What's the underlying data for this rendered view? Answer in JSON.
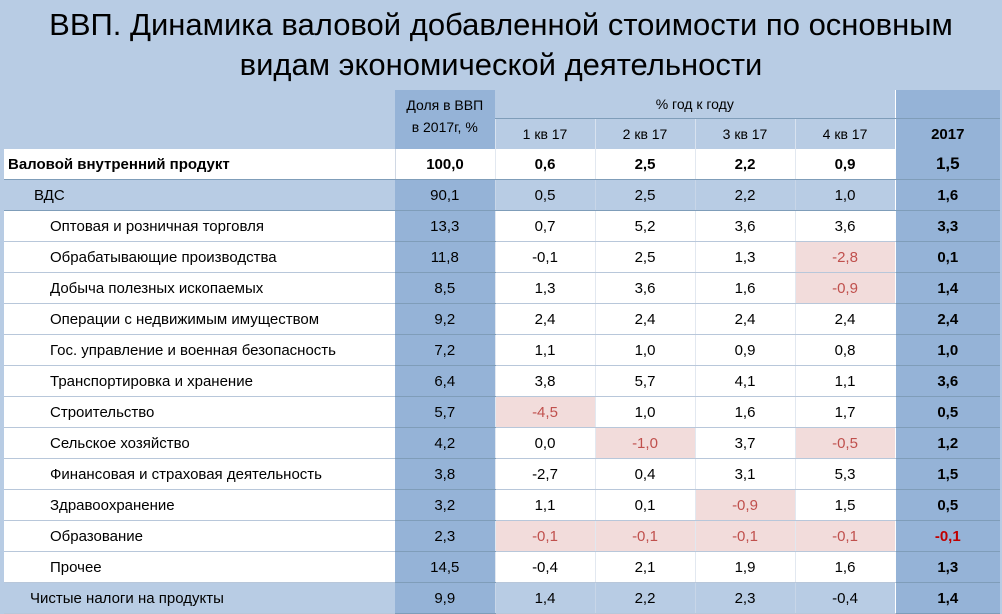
{
  "title": "ВВП. Динамика валовой добавленной стоимости по основным видам экономической деятельности",
  "header": {
    "share_label_line1": "Доля в ВВП",
    "share_label_line2": "в 2017г, %",
    "pct_label": "% год к году",
    "quarters": [
      "1 кв 17",
      "2 кв 17",
      "3 кв 17",
      "4 кв 17"
    ],
    "year": "2017"
  },
  "chart_data": {
    "type": "table",
    "title": "ВВП. Динамика валовой добавленной стоимости по основным видам экономической деятельности",
    "columns": [
      "Доля в ВВП в 2017г, %",
      "1 кв 17",
      "2 кв 17",
      "3 кв 17",
      "4 кв 17",
      "2017"
    ],
    "rows": [
      {
        "name": "Валовой внутренний продукт",
        "share": "100,0",
        "q": [
          "0,6",
          "2,5",
          "2,2",
          "0,9"
        ],
        "year": "1,5"
      },
      {
        "name": "ВДС",
        "share": "90,1",
        "q": [
          "0,5",
          "2,5",
          "2,2",
          "1,0"
        ],
        "year": "1,6"
      },
      {
        "name": "Оптовая и розничная торговля",
        "share": "13,3",
        "q": [
          "0,7",
          "5,2",
          "3,6",
          "3,6"
        ],
        "year": "3,3"
      },
      {
        "name": "Обрабатывающие производства",
        "share": "11,8",
        "q": [
          "-0,1",
          "2,5",
          "1,3",
          "-2,8"
        ],
        "year": "0,1"
      },
      {
        "name": "Добыча полезных ископаемых",
        "share": "8,5",
        "q": [
          "1,3",
          "3,6",
          "1,6",
          "-0,9"
        ],
        "year": "1,4"
      },
      {
        "name": "Операции с недвижимым имуществом",
        "share": "9,2",
        "q": [
          "2,4",
          "2,4",
          "2,4",
          "2,4"
        ],
        "year": "2,4"
      },
      {
        "name": "Гос. управление и военная безопасность",
        "share": "7,2",
        "q": [
          "1,1",
          "1,0",
          "0,9",
          "0,8"
        ],
        "year": "1,0"
      },
      {
        "name": "Транспортировка и хранение",
        "share": "6,4",
        "q": [
          "3,8",
          "5,7",
          "4,1",
          "1,1"
        ],
        "year": "3,6"
      },
      {
        "name": "Строительство",
        "share": "5,7",
        "q": [
          "-4,5",
          "1,0",
          "1,6",
          "1,7"
        ],
        "year": "0,5"
      },
      {
        "name": "Сельское хозяйство",
        "share": "4,2",
        "q": [
          "0,0",
          "-1,0",
          "3,7",
          "-0,5"
        ],
        "year": "1,2"
      },
      {
        "name": "Финансовая и страховая деятельность",
        "share": "3,8",
        "q": [
          "-2,7",
          "0,4",
          "3,1",
          "5,3"
        ],
        "year": "1,5"
      },
      {
        "name": "Здравоохранение",
        "share": "3,2",
        "q": [
          "1,1",
          "0,1",
          "-0,9",
          "1,5"
        ],
        "year": "0,5"
      },
      {
        "name": "Образование",
        "share": "2,3",
        "q": [
          "-0,1",
          "-0,1",
          "-0,1",
          "-0,1"
        ],
        "year": "-0,1"
      },
      {
        "name": "Прочее",
        "share": "14,5",
        "q": [
          "-0,4",
          "2,1",
          "1,9",
          "1,6"
        ],
        "year": "1,3"
      },
      {
        "name": "Чистые налоги на продукты",
        "share": "9,9",
        "q": [
          "1,4",
          "2,2",
          "2,3",
          "-0,4"
        ],
        "year": "1,4"
      }
    ],
    "highlighted_cells": [
      [
        3,
        3
      ],
      [
        4,
        3
      ],
      [
        8,
        0
      ],
      [
        9,
        1
      ],
      [
        9,
        3
      ],
      [
        11,
        2
      ],
      [
        12,
        0
      ],
      [
        12,
        1
      ],
      [
        12,
        2
      ],
      [
        12,
        3
      ]
    ],
    "colors": {
      "highlight_bg": "#f2dcdb",
      "highlight_text": "#c0504d",
      "negative_year": "#c00000",
      "band": "#95b3d7",
      "background": "#b8cce4"
    }
  }
}
